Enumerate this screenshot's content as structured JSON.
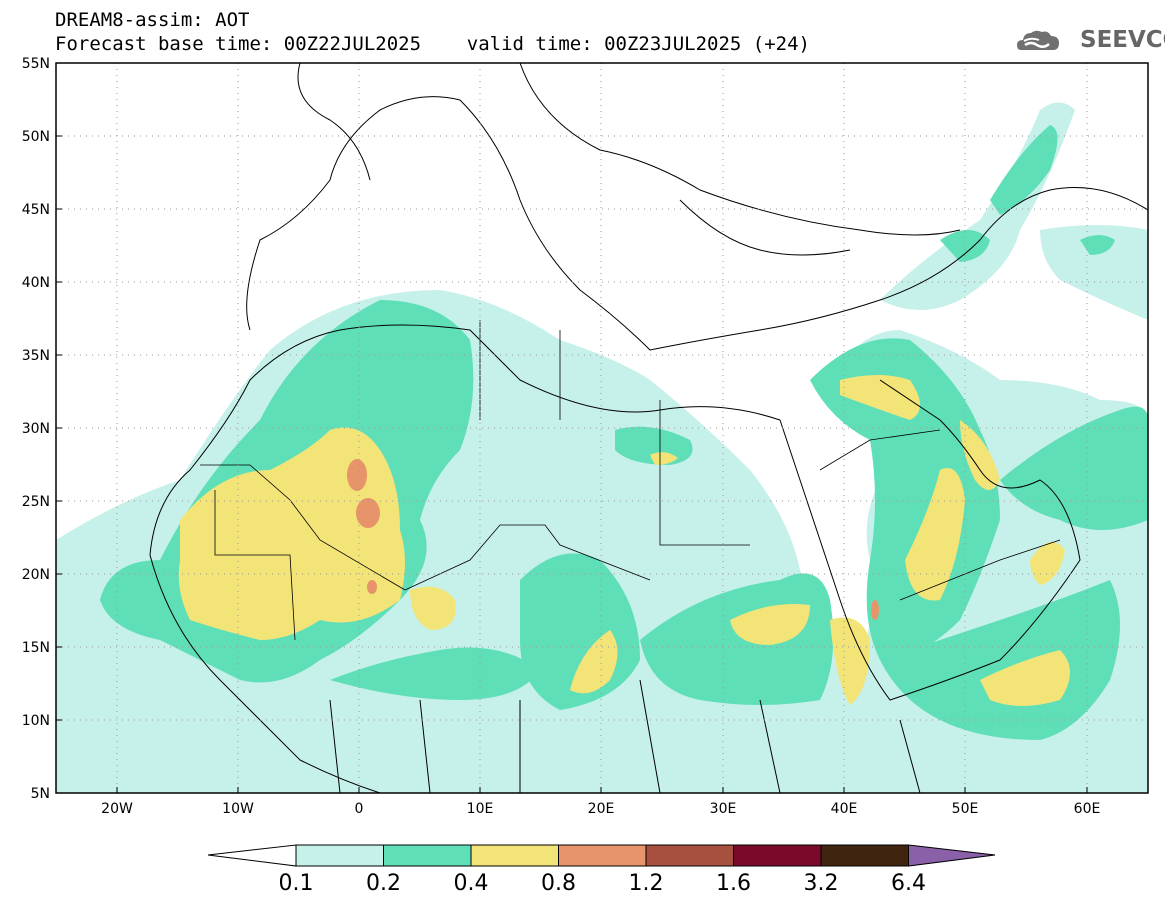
{
  "header": {
    "title_line1": "DREAM8-assim: AOT",
    "title_line2": "Forecast base time: 00Z22JUL2025    valid time: 00Z23JUL2025 (+24)",
    "logo_text": "SEEVCCC"
  },
  "map": {
    "lat_labels": [
      "55N",
      "50N",
      "45N",
      "40N",
      "35N",
      "30N",
      "25N",
      "20N",
      "15N",
      "10N",
      "5N"
    ],
    "lon_labels": [
      "20W",
      "10W",
      "0",
      "10E",
      "20E",
      "30E",
      "40E",
      "50E",
      "60E"
    ],
    "extent": {
      "lon_min": -25,
      "lon_max": 65,
      "lat_min": 5,
      "lat_max": 55
    }
  },
  "colorbar": {
    "levels": [
      "0.1",
      "0.2",
      "0.4",
      "0.8",
      "1.2",
      "1.6",
      "3.2",
      "6.4"
    ],
    "colors": [
      "#ffffff",
      "#c6f0ea",
      "#5fdfb8",
      "#f3e478",
      "#e8946a",
      "#a85040",
      "#7a0a2a",
      "#3f2510",
      "#8a60a8"
    ]
  }
}
